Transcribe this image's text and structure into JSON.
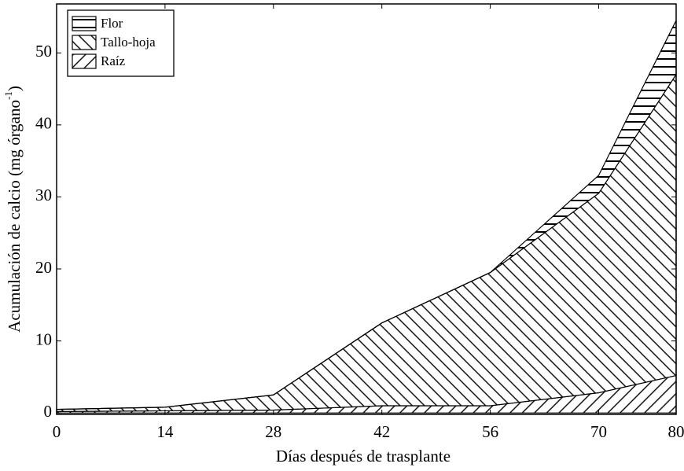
{
  "chart_data": {
    "type": "stacked_area",
    "x_label": "Días después de trasplante",
    "y_label": {
      "main": "Acumulación de calcio (mg órgano",
      "sup": "-1",
      "end": ")"
    },
    "x": [
      0,
      14,
      28,
      42,
      56,
      70,
      80
    ],
    "series": [
      {
        "name": "Raíz",
        "color": "#000000",
        "hatch": "slash",
        "values": [
          0.2,
          0.3,
          0.4,
          1.0,
          1.0,
          2.8,
          5.2
        ]
      },
      {
        "name": "Tallo-hoja",
        "color": "#000000",
        "hatch": "backslash",
        "values": [
          0.3,
          0.5,
          2.1,
          11.5,
          18.5,
          27.7,
          41.8
        ]
      },
      {
        "name": "Flor",
        "color": "#000000",
        "hatch": "horizontal",
        "values": [
          0,
          0,
          0,
          0,
          0,
          2.5,
          7.5
        ]
      }
    ],
    "legend_order": "reverse",
    "legend": "upper-left",
    "xlim": [
      0,
      80
    ],
    "xticks": [
      0,
      14,
      28,
      42,
      56,
      70,
      80
    ],
    "ylim": [
      -0.2,
      56.8
    ],
    "yticks": [
      0,
      10,
      20,
      30,
      40,
      50
    ]
  }
}
